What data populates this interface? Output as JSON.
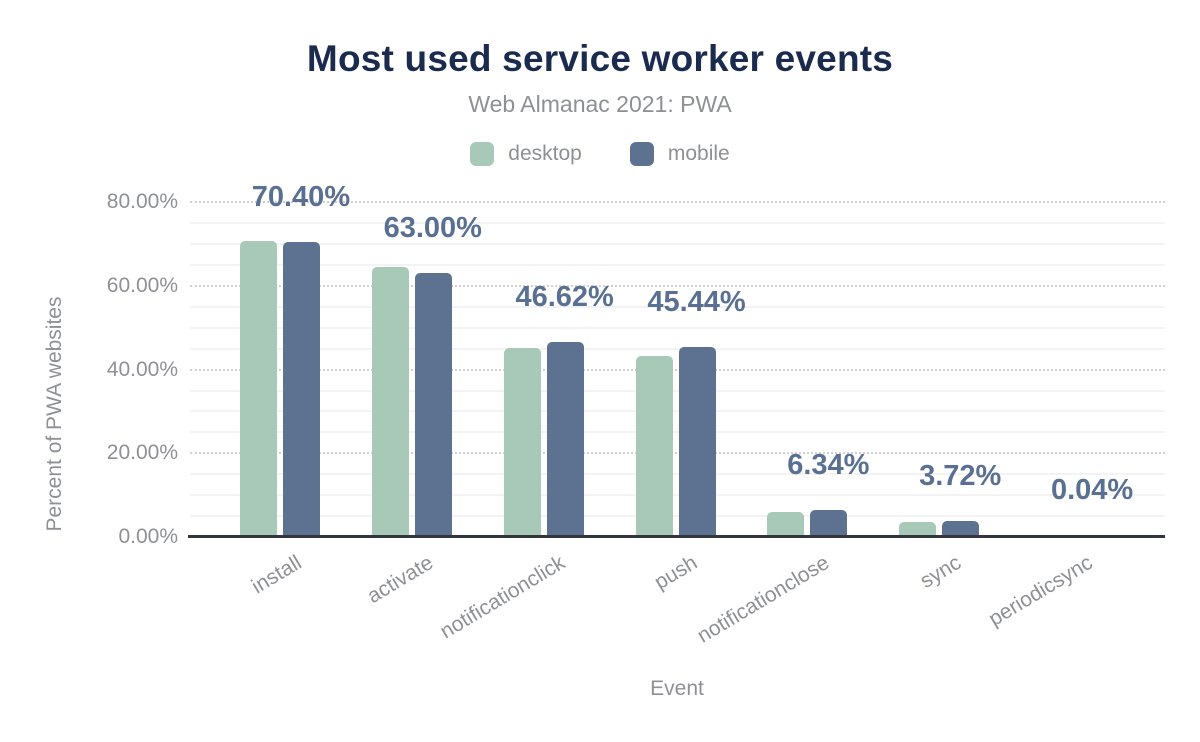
{
  "chart_data": {
    "type": "bar",
    "title": "Most used service worker events",
    "subtitle": "Web Almanac 2021: PWA",
    "xlabel": "Event",
    "ylabel": "Percent of PWA websites",
    "categories": [
      "install",
      "activate",
      "notificationclick",
      "push",
      "notificationclose",
      "sync",
      "periodicsync"
    ],
    "series": [
      {
        "name": "desktop",
        "color": "#a8c9b7",
        "values": [
          70.7,
          64.5,
          45.2,
          43.3,
          6.0,
          3.5,
          0.03
        ]
      },
      {
        "name": "mobile",
        "color": "#5d7190",
        "values": [
          70.4,
          63.0,
          46.62,
          45.44,
          6.34,
          3.72,
          0.04
        ]
      }
    ],
    "data_labels": [
      "70.40%",
      "63.00%",
      "46.62%",
      "45.44%",
      "6.34%",
      "3.72%",
      "0.04%"
    ],
    "data_labels_series": "mobile",
    "y_ticks": [
      {
        "value": 80,
        "label": "80.00%"
      },
      {
        "value": 60,
        "label": "60.00%"
      },
      {
        "value": 40,
        "label": "40.00%"
      },
      {
        "value": 20,
        "label": "20.00%"
      },
      {
        "value": 0,
        "label": "0.00%"
      }
    ],
    "ylim": [
      0,
      86
    ],
    "grid": {
      "minor_step": 5,
      "major_step": 20,
      "max_line": 80,
      "minor_style": "solid",
      "major_style": "dotted"
    },
    "legend_position": "top"
  },
  "colors": {
    "background": "#ffffff",
    "title": "#1a2b4d",
    "muted_text": "#8e9095",
    "value_label": "#5a7092",
    "axis_line": "#33373d",
    "grid_major": "#d0d0d0",
    "grid_minor": "#f3f3f3"
  }
}
